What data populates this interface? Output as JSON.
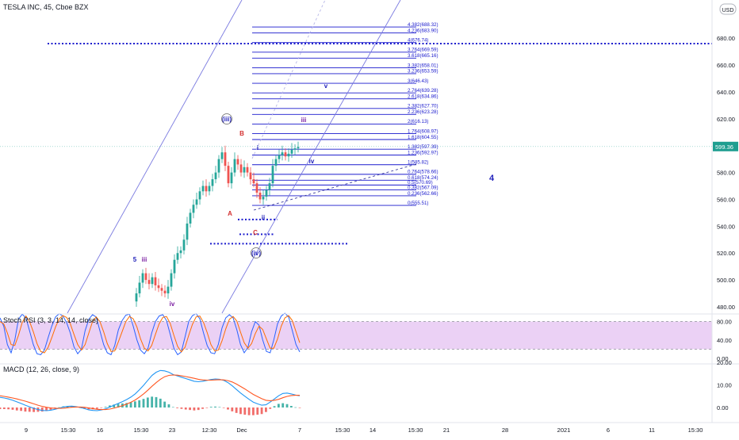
{
  "header": {
    "title": "TESLA INC, 45, Cboe BZX",
    "currency_badge": "USD"
  },
  "colors": {
    "fib": "#1a1acd",
    "trend": "#7a7ae0",
    "up": "#26a69a",
    "down": "#ef5350",
    "wave": "#2222bb",
    "wave_alt": "#7b1fa2",
    "wave_red": "#d32f2f",
    "stoch_fill": "#e6c6f2",
    "stoch_k": "#2962ff",
    "stoch_d": "#ff6d00",
    "macd": "#2196f3",
    "signal": "#ff5722",
    "hist_pos": "#26a69a",
    "hist_neg": "#ef5350",
    "last_price_badge": "#1e9e90"
  },
  "chart_data": [
    {
      "type": "candlestick",
      "title": "TESLA INC, 45, Cboe BZX",
      "ylim": [
        475,
        698
      ],
      "y_ticks": [
        "680.00",
        "660.00",
        "640.00",
        "620.00",
        "600.00",
        "580.00",
        "560.00",
        "540.00",
        "520.00",
        "500.00",
        "480.00"
      ],
      "last_price_label": "599.36",
      "x_ticks": [
        "9",
        "15:30",
        "16",
        "15:30",
        "23",
        "12:30",
        "Dec",
        "7",
        "15:30",
        "14",
        "15:30",
        "21",
        "28",
        "2021",
        "6",
        "11",
        "15:30"
      ],
      "fib_levels": [
        {
          "label": "4.382(688.32)",
          "value": 688.32
        },
        {
          "label": "4.236(683.90)",
          "value": 683.9
        },
        {
          "label": "4(676.74)",
          "value": 676.74
        },
        {
          "label": "3.764(669.59)",
          "value": 669.59
        },
        {
          "label": "3.618(665.16)",
          "value": 665.16
        },
        {
          "label": "3.382(658.01)",
          "value": 658.01
        },
        {
          "label": "3.236(653.59)",
          "value": 653.59
        },
        {
          "label": "3(646.43)",
          "value": 646.43
        },
        {
          "label": "2.764(639.28)",
          "value": 639.28
        },
        {
          "label": "2.618(634.86)",
          "value": 634.86
        },
        {
          "label": "2.382(627.70)",
          "value": 627.7
        },
        {
          "label": "2.236(623.28)",
          "value": 623.28
        },
        {
          "label": "2(616.13)",
          "value": 616.13
        },
        {
          "label": "1.764(608.97)",
          "value": 608.97
        },
        {
          "label": "1.618(604.55)",
          "value": 604.55
        },
        {
          "label": "1.382(597.39)",
          "value": 597.39
        },
        {
          "label": "1.236(592.97)",
          "value": 592.97
        },
        {
          "label": "1(585.82)",
          "value": 585.82
        },
        {
          "label": "0.764(578.66)",
          "value": 578.66
        },
        {
          "label": "0.618(574.24)",
          "value": 574.24
        },
        {
          "label": "0.5(570.69)",
          "value": 570.69
        },
        {
          "label": "0.382(567.09)",
          "value": 567.09
        },
        {
          "label": "0.236(562.66)",
          "value": 562.66
        },
        {
          "label": "0(555.51)",
          "value": 555.51
        }
      ],
      "horizontal_dotted_levels": [
        676.0,
        545.0,
        534.0,
        527.0
      ],
      "wave_labels": [
        {
          "text": "(iii)",
          "color": "wave"
        },
        {
          "text": "B",
          "color": "wave_red"
        },
        {
          "text": "A",
          "color": "wave_red"
        },
        {
          "text": "C",
          "color": "wave_red"
        },
        {
          "text": "(iv)",
          "color": "wave"
        },
        {
          "text": "i",
          "color": "wave"
        },
        {
          "text": "ii",
          "color": "wave"
        },
        {
          "text": "iii",
          "color": "wave_alt"
        },
        {
          "text": "iv",
          "color": "wave"
        },
        {
          "text": "v",
          "color": "wave"
        },
        {
          "text": "4",
          "color": "wave"
        },
        {
          "text": "5",
          "color": "wave"
        },
        {
          "text": "iii",
          "color": "wave_alt"
        },
        {
          "text": "iv",
          "color": "wave_alt"
        }
      ]
    },
    {
      "type": "line",
      "title": "Stoch RSI (3, 3, 14, 14, close)",
      "ylim": [
        0,
        100
      ],
      "y_ticks": [
        "80.00",
        "40.00",
        "0.00"
      ],
      "band": [
        20,
        80
      ],
      "series": [
        {
          "color": "stoch_k",
          "values": [
            88,
            70,
            30,
            12,
            40,
            85,
            96,
            88,
            60,
            30,
            10,
            8,
            18,
            45,
            70,
            90,
            97,
            92,
            78,
            55,
            25,
            10,
            20,
            60,
            85,
            95,
            90,
            60,
            30,
            12,
            8,
            28,
            62,
            82,
            94,
            96,
            70,
            40,
            18,
            10,
            22,
            55,
            80,
            92,
            95,
            82,
            52,
            22,
            8,
            14,
            46,
            80,
            93,
            97,
            86,
            55,
            28,
            12,
            10,
            30,
            66,
            88,
            95,
            88,
            62,
            30,
            12,
            24,
            58,
            80,
            72,
            40,
            15,
            12,
            40,
            75,
            92,
            98,
            90,
            60,
            30,
            14
          ]
        },
        {
          "color": "stoch_d",
          "values": [
            80,
            75,
            55,
            30,
            28,
            50,
            78,
            92,
            80,
            58,
            32,
            15,
            12,
            24,
            45,
            68,
            86,
            93,
            89,
            75,
            52,
            30,
            18,
            30,
            55,
            80,
            90,
            80,
            58,
            32,
            15,
            16,
            36,
            58,
            80,
            91,
            86,
            68,
            42,
            22,
            16,
            28,
            52,
            75,
            89,
            91,
            76,
            50,
            26,
            14,
            24,
            50,
            74,
            90,
            92,
            78,
            56,
            30,
            16,
            18,
            38,
            64,
            85,
            91,
            81,
            57,
            34,
            22,
            32,
            54,
            70,
            63,
            42,
            22,
            22,
            42,
            70,
            88,
            93,
            82,
            58,
            34
          ]
        }
      ]
    },
    {
      "type": "line",
      "title": "MACD (12, 26, close, 9)",
      "ylim": [
        -6,
        20
      ],
      "y_ticks": [
        "20.00",
        "10.00",
        "0.00"
      ],
      "series": [
        {
          "color": "macd",
          "values": [
            4.5,
            4.2,
            3.8,
            3.2,
            2.5,
            1.8,
            1.0,
            0.3,
            -0.4,
            -0.9,
            -1.3,
            -1.4,
            -1.2,
            -0.8,
            -0.3,
            0.2,
            0.5,
            0.6,
            0.4,
            0.0,
            -0.5,
            -1.0,
            -1.3,
            -1.4,
            -1.1,
            -0.6,
            0.2,
            1.0,
            1.8,
            2.6,
            3.5,
            4.6,
            6.0,
            7.8,
            9.8,
            12.0,
            14.2,
            15.6,
            16.4,
            16.2,
            15.6,
            14.6,
            14.0,
            13.4,
            12.8,
            12.2,
            11.6,
            11.4,
            11.6,
            12.0,
            12.4,
            12.6,
            12.5,
            12.0,
            11.0,
            9.6,
            8.0,
            6.4,
            5.0,
            3.6,
            2.4,
            1.6,
            1.0,
            1.2,
            2.4,
            3.8,
            5.2,
            6.2,
            6.4,
            6.0,
            5.5,
            5.2
          ]
        },
        {
          "color": "signal",
          "values": [
            5.2,
            4.9,
            4.6,
            4.2,
            3.8,
            3.3,
            2.8,
            2.2,
            1.6,
            1.0,
            0.5,
            0.1,
            -0.2,
            -0.4,
            -0.4,
            -0.3,
            -0.1,
            0.1,
            0.2,
            0.2,
            0.1,
            -0.2,
            -0.5,
            -0.8,
            -0.9,
            -0.9,
            -0.7,
            -0.3,
            0.2,
            0.8,
            1.5,
            2.3,
            3.3,
            4.6,
            6.0,
            7.6,
            9.4,
            11.0,
            12.5,
            13.6,
            14.2,
            14.4,
            14.3,
            14.0,
            13.7,
            13.3,
            12.9,
            12.5,
            12.2,
            12.1,
            12.1,
            12.2,
            12.3,
            12.2,
            11.9,
            11.3,
            10.4,
            9.3,
            8.2,
            7.0,
            5.8,
            4.8,
            3.9,
            3.2,
            3.0,
            3.2,
            3.6,
            4.3,
            4.9,
            5.3,
            5.4,
            5.4
          ]
        }
      ]
    }
  ]
}
